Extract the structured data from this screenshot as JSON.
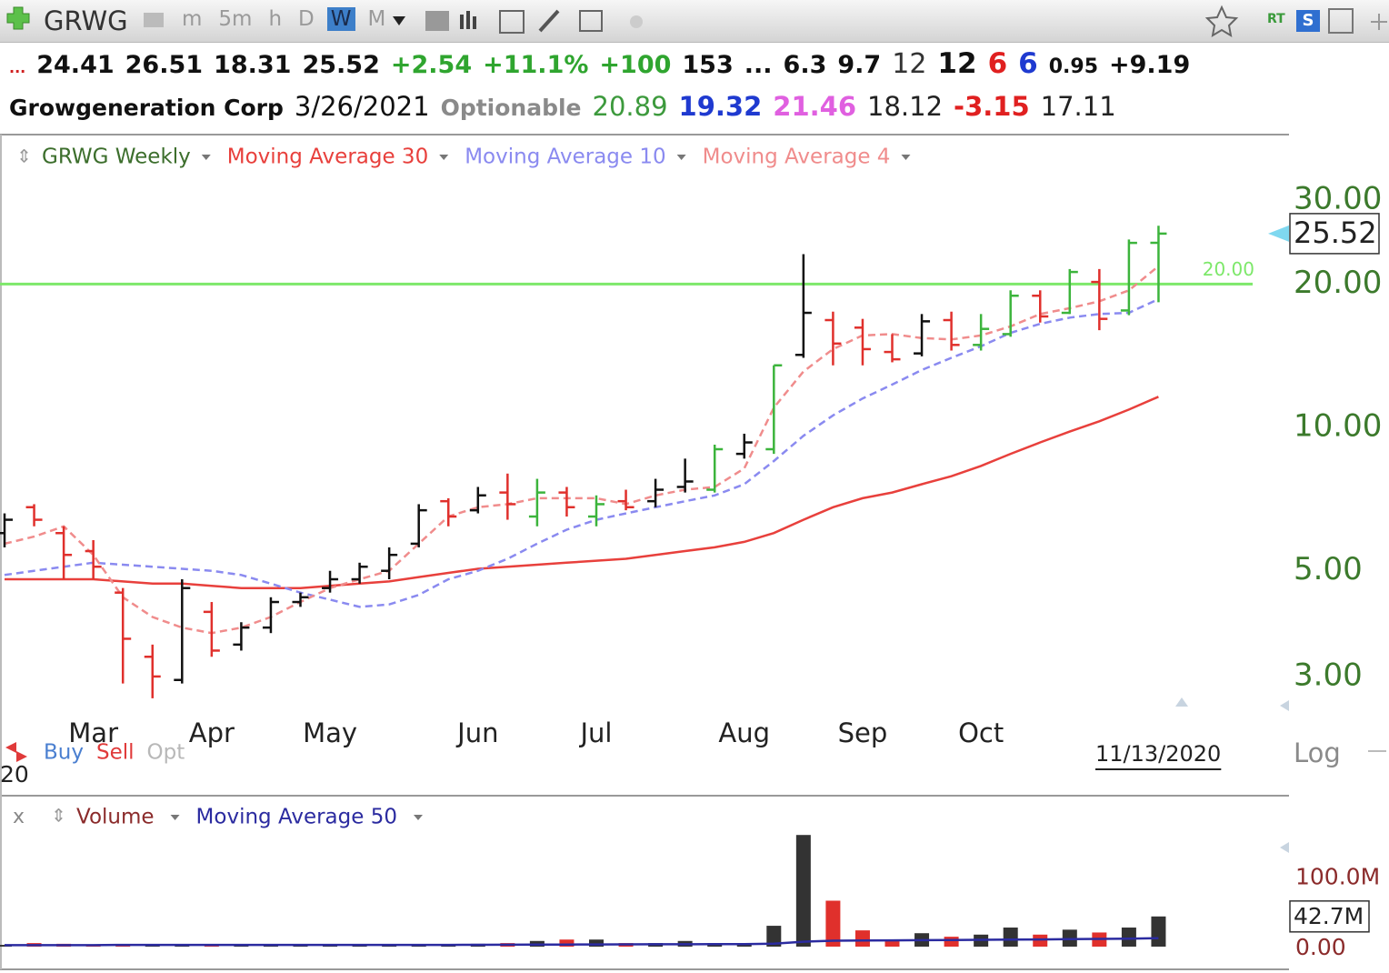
{
  "toolbar": {
    "symbol": "GRWG",
    "timeframes": [
      "m",
      "5m",
      "h",
      "D",
      "W",
      "M"
    ],
    "active_index": 4,
    "rt": "RT",
    "s": "S"
  },
  "header": {
    "row1": [
      {
        "text": "...",
        "color": "#d02020"
      },
      {
        "text": "24.41",
        "color": "#111111"
      },
      {
        "text": "26.51",
        "color": "#111111"
      },
      {
        "text": "18.31",
        "color": "#111111"
      },
      {
        "text": "25.52",
        "color": "#111111"
      },
      {
        "text": "+2.54",
        "color": "#2fa52f"
      },
      {
        "text": "+11.1%",
        "color": "#2fa52f"
      },
      {
        "text": "+100",
        "color": "#2fa52f"
      },
      {
        "text": "153",
        "color": "#111111"
      },
      {
        "text": "...",
        "color": "#111111"
      },
      {
        "text": "6.3",
        "color": "#111111"
      },
      {
        "text": "9.7",
        "color": "#111111"
      },
      {
        "text": "12",
        "color": "#333333"
      },
      {
        "text": "12",
        "color": "#111111"
      },
      {
        "text": "6",
        "color": "#e02020"
      },
      {
        "text": "6",
        "color": "#1f3ad0"
      },
      {
        "text": "0.95",
        "color": "#111111"
      },
      {
        "text": "+9.19",
        "color": "#111111"
      }
    ],
    "row2": [
      {
        "text": "Growgeneration Corp",
        "color": "#111111"
      },
      {
        "text": "3/26/2021",
        "color": "#111111"
      },
      {
        "text": "Optionable",
        "color": "#8a8a8a"
      },
      {
        "text": "20.89",
        "color": "#3d9a3d"
      },
      {
        "text": "19.32",
        "color": "#1f3ad0"
      },
      {
        "text": "21.46",
        "color": "#e060e0"
      },
      {
        "text": "18.12",
        "color": "#222222"
      },
      {
        "text": "-3.15",
        "color": "#e02020"
      },
      {
        "text": "17.11",
        "color": "#222222"
      }
    ]
  },
  "chart_data": [
    {
      "type": "ohlc",
      "title": "GRWG Weekly",
      "log_scale": true,
      "categories": [
        null,
        null,
        null,
        "Mar",
        null,
        null,
        null,
        "Apr",
        null,
        null,
        null,
        "May",
        null,
        null,
        null,
        null,
        "Jun",
        null,
        null,
        null,
        "Jul",
        null,
        null,
        null,
        null,
        "Aug",
        null,
        null,
        null,
        "Sep",
        null,
        null,
        null,
        "Oct",
        null,
        null,
        null,
        null,
        null,
        null
      ],
      "open": [
        6.0,
        6.8,
        6.0,
        5.5,
        4.5,
        3.3,
        2.95,
        4.1,
        3.5,
        3.8,
        4.3,
        4.6,
        4.8,
        5.0,
        5.7,
        7.0,
        6.7,
        7.3,
        6.5,
        7.3,
        6.5,
        7.0,
        7.0,
        7.5,
        7.4,
        8.8,
        9.0,
        14.2,
        16.8,
        16.2,
        14.4,
        14.3,
        16.8,
        14.9,
        15.7,
        18.9,
        17.4,
        20.2,
        17.6,
        24.41
      ],
      "high": [
        6.6,
        6.9,
        6.2,
        5.8,
        4.6,
        3.5,
        4.8,
        4.3,
        3.9,
        4.4,
        4.5,
        5.0,
        5.2,
        5.6,
        6.9,
        7.1,
        7.5,
        8.0,
        7.8,
        7.5,
        7.2,
        7.4,
        7.8,
        8.6,
        9.2,
        9.7,
        13.5,
        23.1,
        17.5,
        16.9,
        15.7,
        17.3,
        17.5,
        17.3,
        19.4,
        19.4,
        21.5,
        21.5,
        24.8,
        26.51
      ],
      "low": [
        5.6,
        6.2,
        4.8,
        4.8,
        2.9,
        2.7,
        2.9,
        3.3,
        3.4,
        3.7,
        4.2,
        4.5,
        4.7,
        4.8,
        5.6,
        6.2,
        6.6,
        6.4,
        6.2,
        6.5,
        6.2,
        6.7,
        6.8,
        7.3,
        7.3,
        8.6,
        8.8,
        14.0,
        13.5,
        13.5,
        13.7,
        14.1,
        14.5,
        14.5,
        15.5,
        16.6,
        17.3,
        16.0,
        17.2,
        18.31
      ],
      "close": [
        6.4,
        6.4,
        5.4,
        5.1,
        3.6,
        3.0,
        4.6,
        3.4,
        3.8,
        4.3,
        4.4,
        4.8,
        5.1,
        5.4,
        6.7,
        6.5,
        7.2,
        6.9,
        7.3,
        6.8,
        6.9,
        6.8,
        7.4,
        7.7,
        9.0,
        9.3,
        13.5,
        17.4,
        15.0,
        14.6,
        13.9,
        16.7,
        14.9,
        16.1,
        18.9,
        17.1,
        21.2,
        16.9,
        24.4,
        25.52
      ],
      "bar_colors": [
        "#111111",
        "#e0302c",
        "#e0302c",
        "#e0302c",
        "#e0302c",
        "#e0302c",
        "#111111",
        "#e0302c",
        "#111111",
        "#111111",
        "#111111",
        "#111111",
        "#111111",
        "#111111",
        "#111111",
        "#e0302c",
        "#111111",
        "#e0302c",
        "#3cb43c",
        "#e0302c",
        "#3cb43c",
        "#e0302c",
        "#111111",
        "#111111",
        "#3cb43c",
        "#111111",
        "#3cb43c",
        "#111111",
        "#e0302c",
        "#e0302c",
        "#e0302c",
        "#111111",
        "#e0302c",
        "#3cb43c",
        "#3cb43c",
        "#e0302c",
        "#3cb43c",
        "#e0302c",
        "#3cb43c",
        "#3cb43c"
      ],
      "title_color": "#3c6e2c",
      "overlays": [
        {
          "name": "Moving Average 30",
          "color": "#e8403c",
          "dashed": false,
          "values": [
            4.8,
            4.8,
            4.8,
            4.8,
            4.75,
            4.7,
            4.7,
            4.65,
            4.6,
            4.6,
            4.6,
            4.65,
            4.7,
            4.75,
            4.85,
            4.95,
            5.05,
            5.1,
            5.15,
            5.2,
            5.25,
            5.3,
            5.4,
            5.5,
            5.6,
            5.75,
            6.0,
            6.4,
            6.8,
            7.1,
            7.3,
            7.6,
            7.9,
            8.3,
            8.8,
            9.3,
            9.8,
            10.3,
            10.9,
            11.6
          ]
        },
        {
          "name": "Moving Average 10",
          "color": "#8a8af0",
          "dashed": true,
          "values": [
            4.9,
            5.0,
            5.1,
            5.2,
            5.15,
            5.1,
            5.05,
            5.0,
            4.9,
            4.7,
            4.5,
            4.35,
            4.2,
            4.25,
            4.45,
            4.8,
            5.0,
            5.3,
            5.7,
            6.1,
            6.4,
            6.6,
            6.8,
            7.0,
            7.2,
            7.6,
            8.5,
            9.6,
            10.6,
            11.5,
            12.3,
            13.2,
            14.0,
            14.8,
            15.8,
            16.5,
            17.0,
            17.3,
            17.4,
            18.6
          ]
        },
        {
          "name": "Moving Average 4",
          "color": "#f08c8c",
          "dashed": true,
          "values": [
            5.7,
            5.9,
            6.2,
            5.4,
            4.4,
            4.0,
            3.8,
            3.7,
            3.8,
            4.0,
            4.3,
            4.6,
            4.8,
            5.0,
            5.7,
            6.5,
            6.8,
            6.9,
            7.1,
            7.1,
            7.1,
            6.9,
            7.2,
            7.4,
            7.5,
            8.2,
            11.0,
            13.1,
            14.6,
            15.6,
            15.7,
            15.4,
            15.3,
            15.6,
            16.3,
            17.3,
            17.8,
            18.4,
            19.4,
            21.8
          ]
        }
      ],
      "ylim": [
        2.45,
        33.5
      ],
      "yticks": [
        {
          "value": 3,
          "label": "3.00"
        },
        {
          "value": 5,
          "label": "5.00"
        },
        {
          "value": 10,
          "label": "10.00"
        },
        {
          "value": 20,
          "label": "20.00"
        },
        {
          "value": 30,
          "label": "30.00"
        }
      ],
      "hline": {
        "value": 20,
        "label": "20.00",
        "color": "#7de86a"
      },
      "date_label": "11/13/2020",
      "scale_label": "Log",
      "corner_text": "20",
      "buttons": [
        {
          "text": "Buy",
          "color": "#4a7fd0"
        },
        {
          "text": "Sell",
          "color": "#e03a3a"
        },
        {
          "text": "Opt",
          "color": "#b8b8b8"
        }
      ]
    },
    {
      "type": "bar",
      "title": "Volume",
      "close_label": "x",
      "title_color": "#8b2b2b",
      "values": [
        2.5,
        5,
        4,
        3,
        3,
        3,
        3,
        3,
        2.5,
        2.5,
        2.5,
        2.5,
        2.5,
        2.5,
        2.5,
        2.5,
        4,
        5,
        8,
        10,
        10,
        5,
        5,
        8,
        5,
        5,
        29.5,
        158,
        65,
        23,
        10,
        19,
        14,
        17,
        27,
        17,
        24,
        20,
        27,
        42.7
      ],
      "value_labels": [
        null,
        null,
        null,
        null,
        null,
        null,
        null,
        null,
        null,
        null,
        null,
        null,
        null,
        null,
        null,
        null,
        null,
        null,
        null,
        null,
        null,
        null,
        null,
        null,
        null,
        null,
        null,
        null,
        null,
        null,
        null,
        null,
        null,
        null,
        null,
        null,
        null,
        null,
        null,
        "42.7M"
      ],
      "colors": [
        "#333333",
        "#e0302c",
        "#e0302c",
        "#e0302c",
        "#e0302c",
        "#333333",
        "#333333",
        "#e0302c",
        "#333333",
        "#333333",
        "#333333",
        "#333333",
        "#333333",
        "#333333",
        "#333333",
        "#333333",
        "#333333",
        "#e0302c",
        "#333333",
        "#e0302c",
        "#333333",
        "#e0302c",
        "#333333",
        "#333333",
        "#333333",
        "#333333",
        "#333333",
        "#333333",
        "#e0302c",
        "#e0302c",
        "#e0302c",
        "#333333",
        "#e0302c",
        "#333333",
        "#333333",
        "#e0302c",
        "#333333",
        "#e0302c",
        "#333333",
        "#333333"
      ],
      "overlays": [
        {
          "name": "Moving Average 50",
          "color": "#2b2ba0",
          "values": [
            2,
            2,
            2,
            2,
            2.5,
            2.5,
            2.5,
            2.5,
            2.5,
            2.5,
            2.5,
            2.5,
            2.5,
            2.5,
            2.5,
            2.5,
            2.6,
            2.7,
            2.8,
            3,
            3.1,
            3.2,
            3.3,
            3.4,
            3.5,
            3.6,
            4.2,
            7,
            8.3,
            8.7,
            8.9,
            9.2,
            9.4,
            9.6,
            10,
            10.2,
            10.6,
            10.9,
            11.3,
            12
          ]
        }
      ],
      "ylim": [
        0,
        175
      ],
      "yticks": [
        {
          "value": 0,
          "label": "0.00"
        },
        {
          "value": 100,
          "label": "100.0M"
        }
      ]
    }
  ]
}
